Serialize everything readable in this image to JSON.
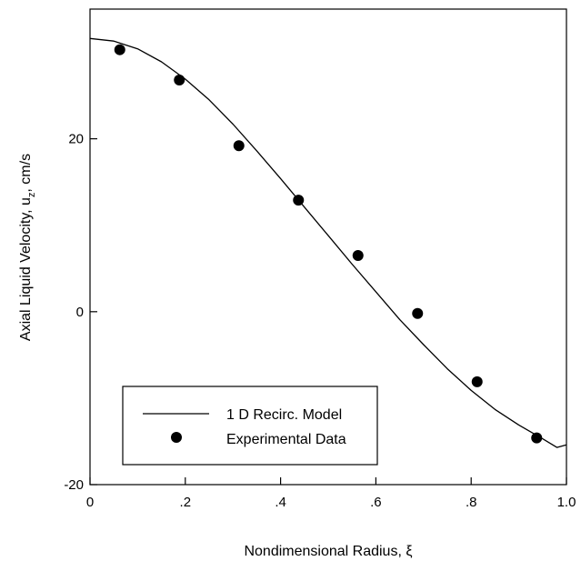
{
  "chart_data": {
    "type": "line",
    "xlabel": "Nondimensional Radius, ξ",
    "ylabel_main": "Axial Liquid Velocity, u",
    "ylabel_sub": "z",
    "ylabel_tail": ", cm/s",
    "xlim": [
      0,
      1.0
    ],
    "ylim": [
      -20,
      35
    ],
    "x_ticks": [
      0,
      0.2,
      0.4,
      0.6,
      0.8,
      1.0
    ],
    "x_tick_labels": [
      "0",
      ".2",
      ".4",
      ".6",
      ".8",
      "1.0"
    ],
    "y_ticks": [
      -20,
      0,
      20
    ],
    "y_tick_labels": [
      "-20",
      "0",
      "20"
    ],
    "grid": false,
    "legend_position": "bottom-left",
    "series": [
      {
        "name": "1 D Recirc. Model",
        "kind": "line",
        "color": "#000000",
        "x": [
          0,
          0.05,
          0.1,
          0.15,
          0.2,
          0.25,
          0.3,
          0.35,
          0.4,
          0.45,
          0.5,
          0.55,
          0.6,
          0.65,
          0.7,
          0.75,
          0.8,
          0.85,
          0.9,
          0.95,
          0.98,
          1.0
        ],
        "y": [
          31.6,
          31.3,
          30.4,
          28.9,
          26.9,
          24.5,
          21.7,
          18.6,
          15.4,
          12.1,
          8.8,
          5.5,
          2.3,
          -0.9,
          -3.8,
          -6.6,
          -9.1,
          -11.3,
          -13.1,
          -14.7,
          -15.7,
          -15.4
        ]
      },
      {
        "name": "Experimental Data",
        "kind": "scatter",
        "color": "#000000",
        "x": [
          0.0625,
          0.1875,
          0.3125,
          0.4375,
          0.5625,
          0.6875,
          0.8125,
          0.9375
        ],
        "y": [
          30.3,
          26.8,
          19.2,
          12.9,
          6.5,
          -0.2,
          -8.1,
          -14.6
        ]
      }
    ]
  }
}
